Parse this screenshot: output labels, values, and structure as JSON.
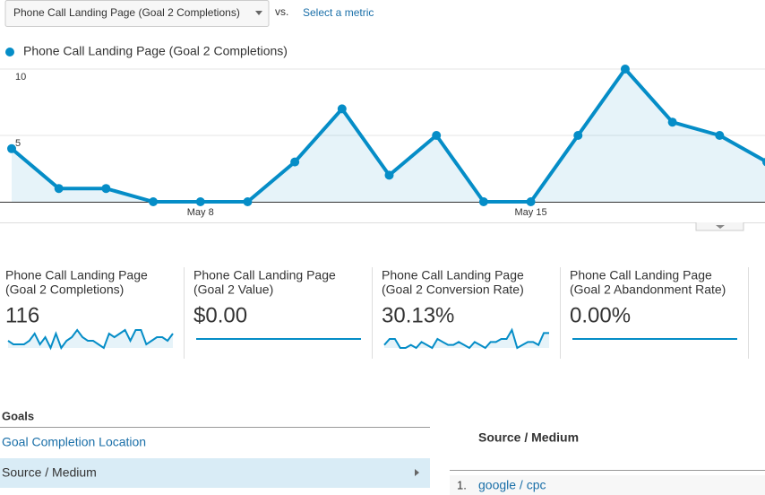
{
  "header": {
    "metric_dropdown": "Phone Call Landing Page (Goal 2 Completions)",
    "vs": "vs.",
    "select_metric": "Select a metric"
  },
  "chart_data": {
    "type": "line",
    "categories": [
      null,
      null,
      null,
      null,
      "May 8",
      null,
      null,
      null,
      null,
      null,
      null,
      "May 15",
      null,
      null,
      null,
      null,
      null
    ],
    "series": [
      {
        "name": "Phone Call Landing Page (Goal 2 Completions)",
        "color": "#058dc7",
        "values": [
          4,
          1,
          1,
          0,
          0,
          0,
          3,
          7,
          2,
          5,
          0,
          0,
          5,
          10,
          6,
          5,
          3
        ]
      }
    ],
    "ylim": [
      0,
      10
    ],
    "yticks": [
      5,
      10
    ],
    "grid": true
  },
  "scorecards": [
    {
      "label": [
        "Phone Call Landing Page",
        "(Goal 2 Completions)"
      ],
      "value": "116",
      "sparkline": [
        2,
        1,
        1,
        1,
        2,
        4,
        1,
        3,
        0,
        4,
        0,
        2,
        3,
        5,
        3,
        2,
        2,
        1,
        0,
        4,
        3,
        4,
        5,
        2,
        5,
        5,
        1,
        2,
        3,
        3,
        2,
        4
      ]
    },
    {
      "label": [
        "Phone Call Landing Page",
        "(Goal 2 Value)"
      ],
      "value": "$0.00",
      "sparkline": [
        0,
        0,
        0,
        0,
        0,
        0,
        0,
        0,
        0,
        0,
        0,
        0,
        0,
        0,
        0,
        0,
        0,
        0,
        0,
        0,
        0,
        0,
        0,
        0,
        0,
        0,
        0,
        0,
        0,
        0,
        0,
        0
      ]
    },
    {
      "label": [
        "Phone Call Landing Page",
        "(Goal 2 Conversion Rate)"
      ],
      "value": "30.13%",
      "sparkline": [
        20,
        30,
        30,
        15,
        15,
        20,
        15,
        25,
        20,
        15,
        30,
        25,
        20,
        20,
        25,
        20,
        15,
        25,
        20,
        15,
        25,
        25,
        30,
        30,
        45,
        15,
        20,
        25,
        25,
        20,
        40,
        40
      ]
    },
    {
      "label": [
        "Phone Call Landing Page",
        "(Goal 2 Abandonment Rate)"
      ],
      "value": "0.00%",
      "sparkline": [
        0,
        0,
        0,
        0,
        0,
        0,
        0,
        0,
        0,
        0,
        0,
        0,
        0,
        0,
        0,
        0,
        0,
        0,
        0,
        0,
        0,
        0,
        0,
        0,
        0,
        0,
        0,
        0,
        0,
        0,
        0,
        0
      ]
    }
  ],
  "goals": {
    "title": "Goals",
    "items": [
      "Goal Completion Location",
      "Source / Medium"
    ]
  },
  "table": {
    "header": "Source / Medium",
    "rows": [
      [
        "1.",
        "google / cpc"
      ]
    ]
  }
}
